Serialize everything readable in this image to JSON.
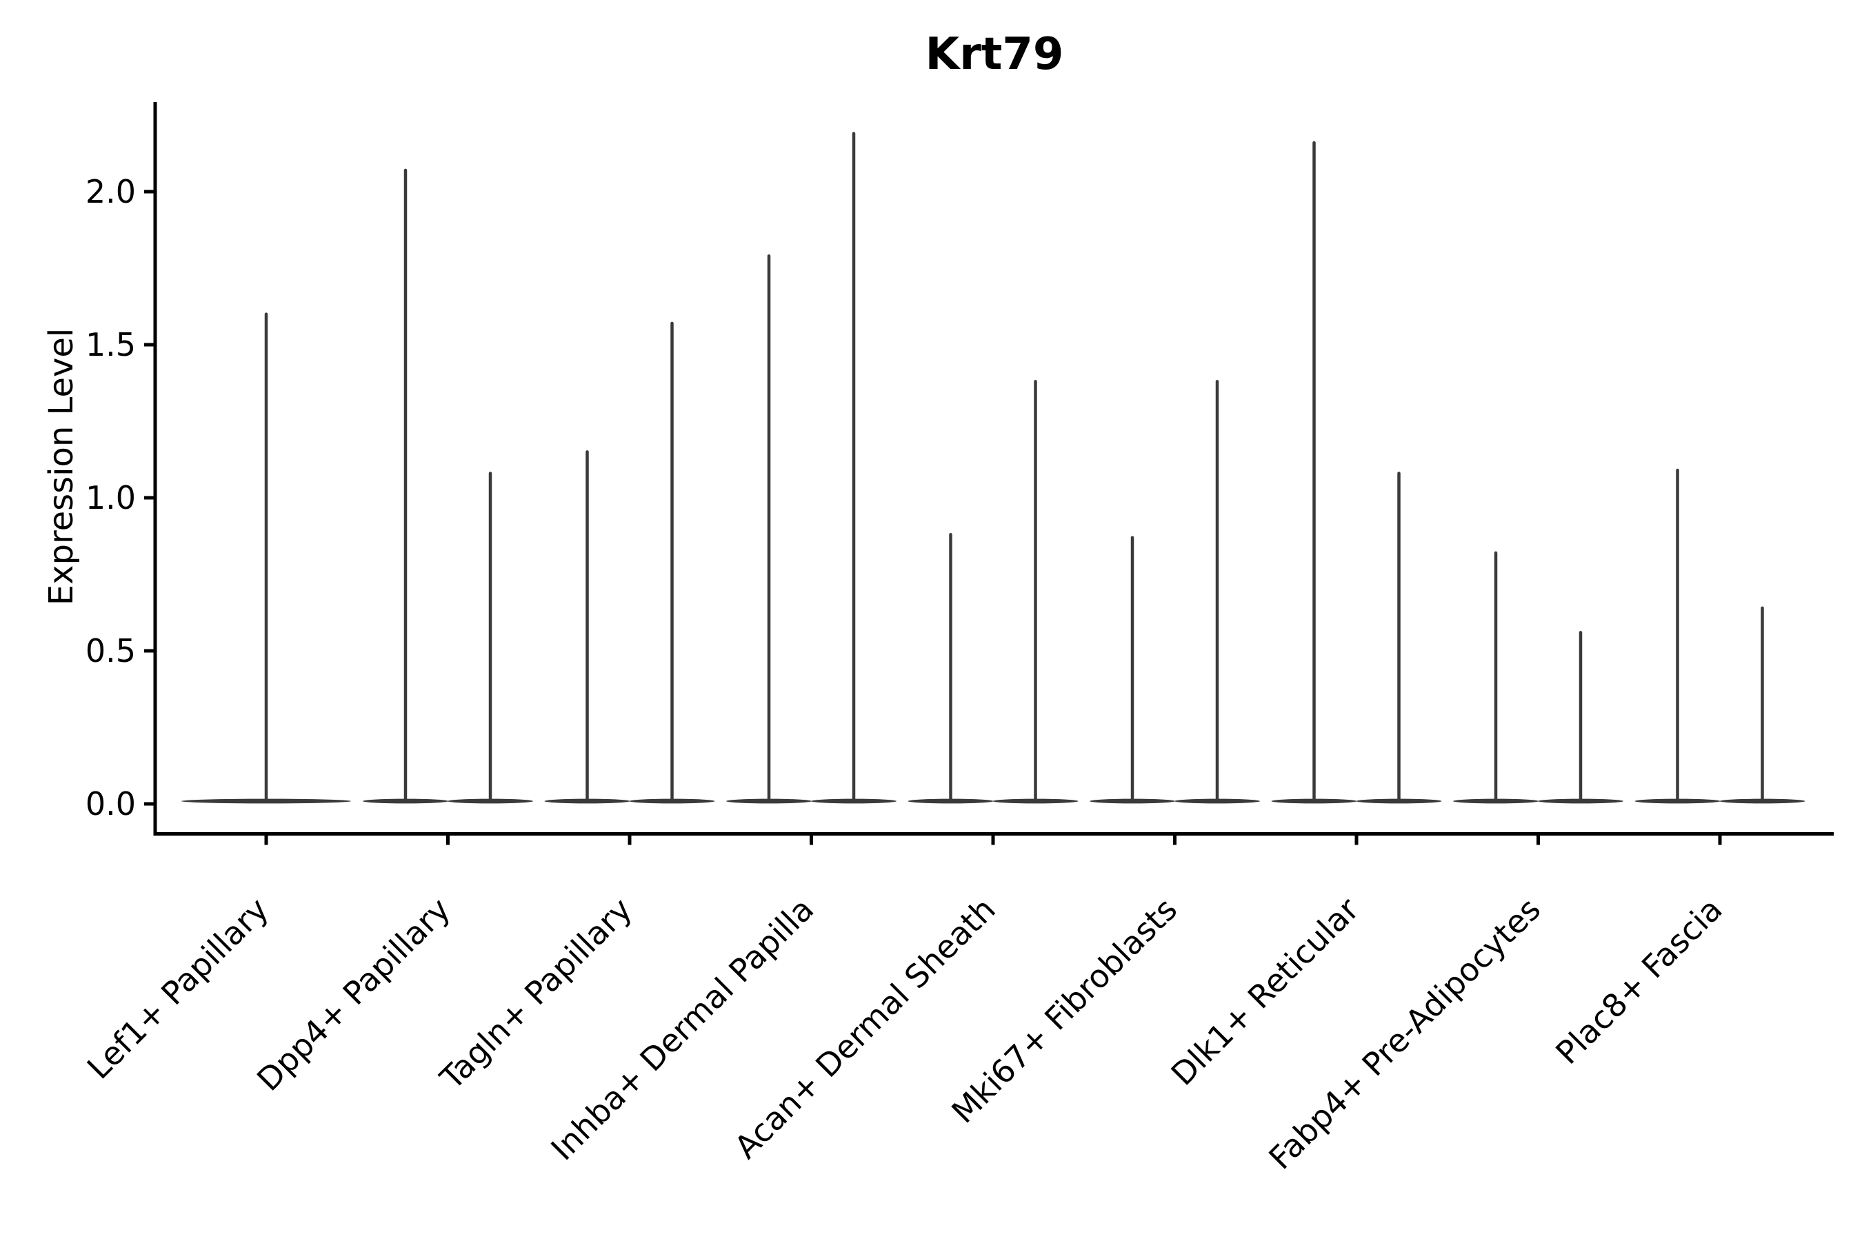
{
  "chart_data": {
    "type": "violin",
    "title": "Krt79",
    "xlabel": "",
    "ylabel": "Expression Level",
    "y_ticks": [
      "0.0",
      "0.5",
      "1.0",
      "1.5",
      "2.0"
    ],
    "y_tick_values": [
      0.0,
      0.5,
      1.0,
      1.5,
      2.0
    ],
    "ylim": [
      -0.1,
      2.29
    ],
    "grid": false,
    "legend": null,
    "layout_hint": "sparse single-cell expression: each violin collapses to a flat bar at 0 with a thin spike up to its max value; categories 2-9 contain two violins side by side, category 1 a single centered violin",
    "violins": [
      {
        "category": "Lef1+ Papillary",
        "max_values": [
          1.6
        ]
      },
      {
        "category": "Dpp4+ Papillary",
        "max_values": [
          2.07,
          1.08
        ]
      },
      {
        "category": "Tagln+ Papillary",
        "max_values": [
          1.15,
          1.57
        ]
      },
      {
        "category": "Inhba+ Dermal Papilla",
        "max_values": [
          1.79,
          2.19
        ]
      },
      {
        "category": "Acan+ Dermal Sheath",
        "max_values": [
          0.88,
          1.38
        ]
      },
      {
        "category": "Mki67+ Fibroblasts",
        "max_values": [
          0.87,
          1.38
        ]
      },
      {
        "category": "Dlk1+ Reticular",
        "max_values": [
          2.16,
          1.08
        ]
      },
      {
        "category": "Fabp4+ Pre-Adipocytes",
        "max_values": [
          0.82,
          0.56
        ]
      },
      {
        "category": "Plac8+ Fascia",
        "max_values": [
          1.09,
          0.64
        ]
      }
    ],
    "colors": {
      "violin": "#3a3a3a",
      "axis": "#000000",
      "text": "#000000",
      "background": "#ffffff"
    }
  }
}
